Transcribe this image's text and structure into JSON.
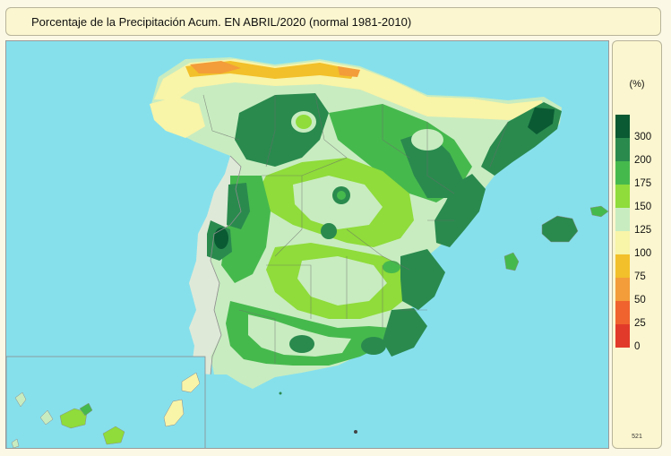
{
  "title": "Porcentaje de la Precipitación Acum. EN  ABRIL/2020  (normal 1981-2010)",
  "legend": {
    "unit": "(%)",
    "classes": [
      {
        "label": "300",
        "color": "#0a5a33"
      },
      {
        "label": "200",
        "color": "#2a8a4e"
      },
      {
        "label": "175",
        "color": "#46b94d"
      },
      {
        "label": "150",
        "color": "#8fdc3a"
      },
      {
        "label": "125",
        "color": "#c8ecc0"
      },
      {
        "label": "100",
        "color": "#f8f4a8"
      },
      {
        "label": "75",
        "color": "#f2c02a"
      },
      {
        "label": "50",
        "color": "#f39c3a"
      },
      {
        "label": "25",
        "color": "#f0622e"
      },
      {
        "label": "0",
        "color": "#e23a2a"
      }
    ]
  },
  "map_code": "521",
  "colors": {
    "sea": "#86e0ec",
    "panel": "#fbf6cf"
  }
}
